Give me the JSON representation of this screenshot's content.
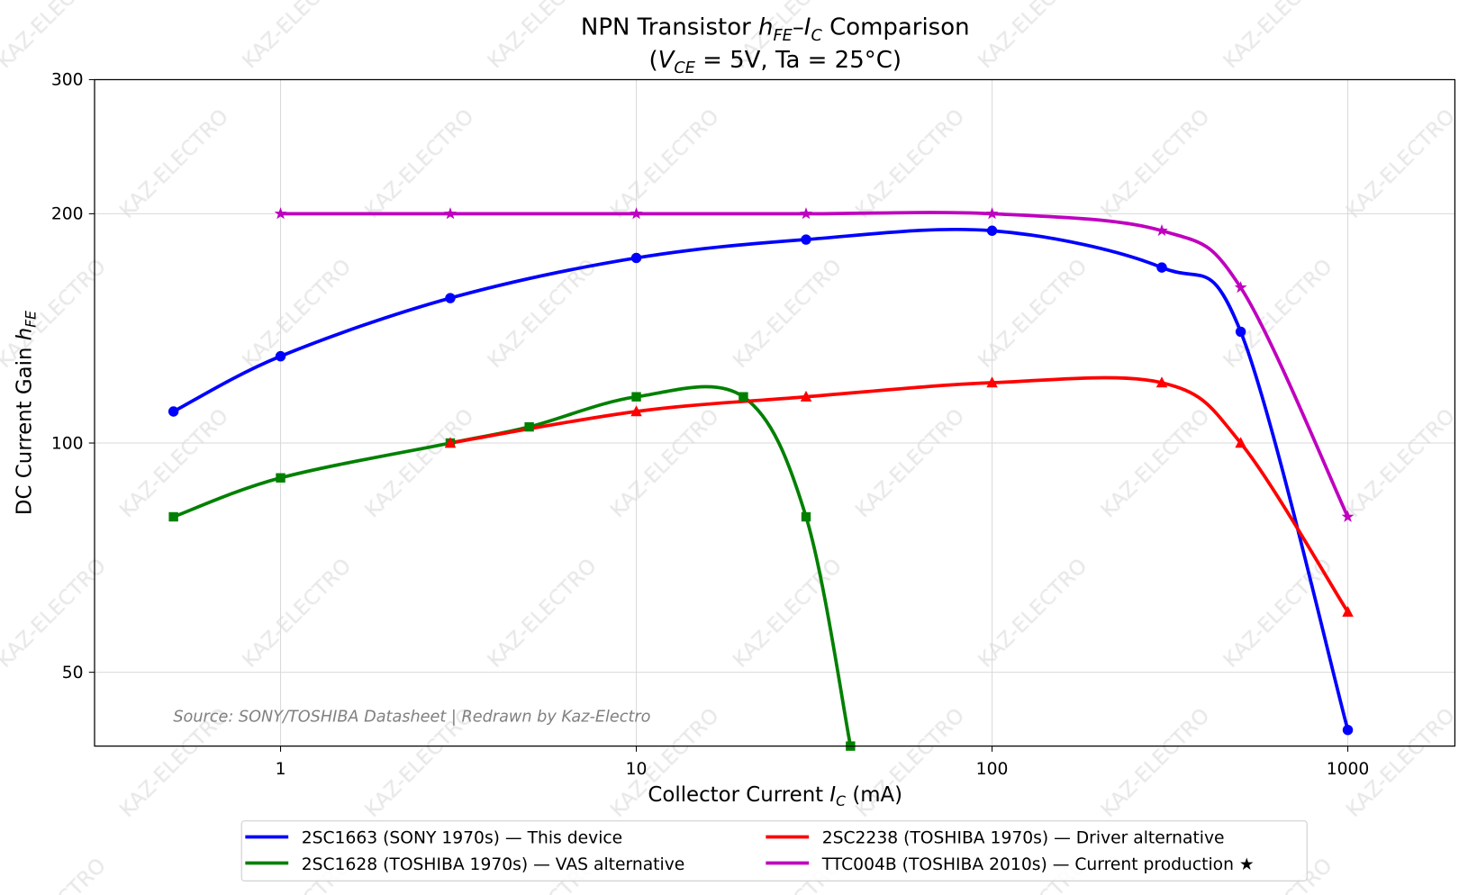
{
  "chart_data": {
    "type": "line",
    "title": "NPN Transistor hFE–IC Comparison",
    "title_parts": {
      "prefix": "NPN Transistor ",
      "h": "h",
      "h_sub": "FE",
      "dash": "–",
      "i": "I",
      "i_sub": "C",
      "suffix": " Comparison"
    },
    "subtitle_parts": {
      "open": "(",
      "v": "V",
      "v_sub": "CE",
      "rest": " = 5V, Ta = 25°C)"
    },
    "xlabel_parts": {
      "text": "Collector Current  ",
      "i": "I",
      "i_sub": "C",
      "unit": "  (mA)"
    },
    "ylabel_parts": {
      "text": "DC Current Gain  ",
      "h": "h",
      "h_sub": "FE"
    },
    "xscale": "log",
    "yscale": "log",
    "xlim": [
      0.3,
      2000
    ],
    "ylim": [
      40,
      300
    ],
    "x_ticks": [
      1,
      10,
      100,
      1000
    ],
    "x_tick_labels": [
      "1",
      "10",
      "100",
      "1000"
    ],
    "y_ticks": [
      50,
      100,
      200,
      300
    ],
    "y_tick_labels": [
      "50",
      "100",
      "200",
      "300"
    ],
    "grid": true,
    "legend_placement": "bottom-center (below axes, 2 columns)",
    "annotation": "Source: SONY/TOSHIBA Datasheet  |  Redrawn by Kaz-Electro",
    "watermark": "KAZ-ELECTRO",
    "series": [
      {
        "name": "2SC1663 (SONY 1970s) — This device",
        "color": "#0000ff",
        "marker": "circle",
        "x": [
          0.5,
          1,
          3,
          10,
          30,
          100,
          300,
          500,
          1000
        ],
        "y": [
          110,
          130,
          155,
          175,
          185,
          190,
          170,
          140,
          42
        ]
      },
      {
        "name": "2SC1628 (TOSHIBA 1970s) — VAS alternative",
        "color": "#008000",
        "marker": "square",
        "x": [
          0.5,
          1,
          3,
          5,
          10,
          20,
          30,
          40
        ],
        "y": [
          80,
          90,
          100,
          105,
          115,
          115,
          80,
          40
        ]
      },
      {
        "name": "2SC2238 (TOSHIBA 1970s) — Driver alternative",
        "color": "#ff0000",
        "marker": "triangle",
        "x": [
          3,
          10,
          30,
          100,
          300,
          500,
          1000
        ],
        "y": [
          100,
          110,
          115,
          120,
          120,
          100,
          60
        ]
      },
      {
        "name": "TTC004B (TOSHIBA 2010s) — Current production ★",
        "color": "#bf00bf",
        "marker": "star",
        "x": [
          1,
          3,
          10,
          30,
          100,
          300,
          500,
          1000
        ],
        "y": [
          200,
          200,
          200,
          200,
          200,
          190,
          160,
          80
        ]
      }
    ]
  }
}
